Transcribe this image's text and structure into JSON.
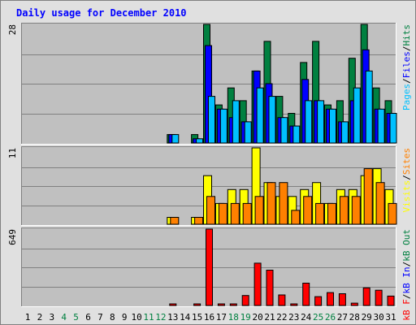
{
  "chart_data": {
    "type": "bar",
    "title": "Daily usage for December 2010",
    "categories": [
      "1",
      "2",
      "3",
      "4",
      "5",
      "6",
      "7",
      "8",
      "9",
      "10",
      "11",
      "12",
      "13",
      "14",
      "15",
      "16",
      "17",
      "18",
      "19",
      "20",
      "21",
      "22",
      "23",
      "24",
      "25",
      "26",
      "27",
      "28",
      "29",
      "30",
      "31"
    ],
    "weekend_days": [
      "4",
      "5",
      "11",
      "12",
      "18",
      "19",
      "25",
      "26"
    ],
    "panels": [
      {
        "name": "hits",
        "ymax_label": "28",
        "ylim": [
          0,
          28
        ],
        "legend": [
          "Pages",
          "/",
          "Files",
          "/",
          "Hits"
        ],
        "legend_colors": [
          "#00c0ff",
          "#000000",
          "#0000ff",
          "#000000",
          "#008040"
        ],
        "series": [
          {
            "name": "Hits",
            "color": "#008040",
            "values": [
              0,
              0,
              0,
              0,
              0,
              0,
              0,
              0,
              0,
              0,
              0,
              0,
              2,
              0,
              2,
              28,
              9,
              13,
              10,
              17,
              24,
              11,
              7,
              19,
              24,
              9,
              10,
              20,
              28,
              13,
              10
            ]
          },
          {
            "name": "Files",
            "color": "#0000ff",
            "values": [
              0,
              0,
              0,
              0,
              0,
              0,
              0,
              0,
              0,
              0,
              0,
              0,
              2,
              0,
              1,
              23,
              8,
              6,
              5,
              17,
              14,
              6,
              4,
              15,
              10,
              8,
              5,
              10,
              22,
              8,
              7
            ]
          },
          {
            "name": "Pages",
            "color": "#00c0ff",
            "values": [
              0,
              0,
              0,
              0,
              0,
              0,
              0,
              0,
              0,
              0,
              0,
              0,
              2,
              0,
              1,
              11,
              8,
              10,
              5,
              13,
              11,
              6,
              4,
              10,
              10,
              8,
              5,
              13,
              17,
              8,
              7
            ]
          }
        ]
      },
      {
        "name": "visits",
        "ymax_label": "11",
        "ylim": [
          0,
          11
        ],
        "legend": [
          "Visits",
          "/",
          "Sites"
        ],
        "legend_colors": [
          "#ffff00",
          "#000000",
          "#ff8000"
        ],
        "series": [
          {
            "name": "Visits",
            "color": "#ffff00",
            "values": [
              0,
              0,
              0,
              0,
              0,
              0,
              0,
              0,
              0,
              0,
              0,
              0,
              1,
              0,
              1,
              7,
              3,
              5,
              5,
              11,
              6,
              4,
              4,
              5,
              6,
              3,
              5,
              5,
              7,
              8,
              5
            ]
          },
          {
            "name": "Sites",
            "color": "#ff8000",
            "values": [
              0,
              0,
              0,
              0,
              0,
              0,
              0,
              0,
              0,
              0,
              0,
              0,
              1,
              0,
              1,
              4,
              3,
              3,
              3,
              4,
              6,
              6,
              2,
              4,
              3,
              3,
              4,
              4,
              8,
              6,
              3
            ]
          }
        ]
      },
      {
        "name": "kbytes",
        "ymax_label": "649",
        "ylim": [
          0,
          649
        ],
        "legend": [
          "kB F",
          "/",
          "kB In",
          "/",
          "kB Out"
        ],
        "legend_colors": [
          "#ff0000",
          "#000000",
          "#0000ff",
          "#000000",
          "#008040"
        ],
        "series": [
          {
            "name": "kB F",
            "color": "#ff0000",
            "values": [
              0,
              0,
              0,
              0,
              0,
              0,
              0,
              0,
              0,
              0,
              0,
              0,
              10,
              0,
              10,
              649,
              10,
              10,
              85,
              360,
              300,
              90,
              10,
              190,
              75,
              110,
              100,
              20,
              150,
              130,
              80
            ]
          }
        ]
      }
    ]
  },
  "colors": {
    "panel_bg": "#c0c0c0",
    "frame_light": "#ffffff",
    "frame_dark": "#808080",
    "page_bg": "#e0e0e0",
    "grid": "#808080",
    "title": "#0000ff",
    "day_weekday": "#000000",
    "day_weekend": "#008040"
  }
}
